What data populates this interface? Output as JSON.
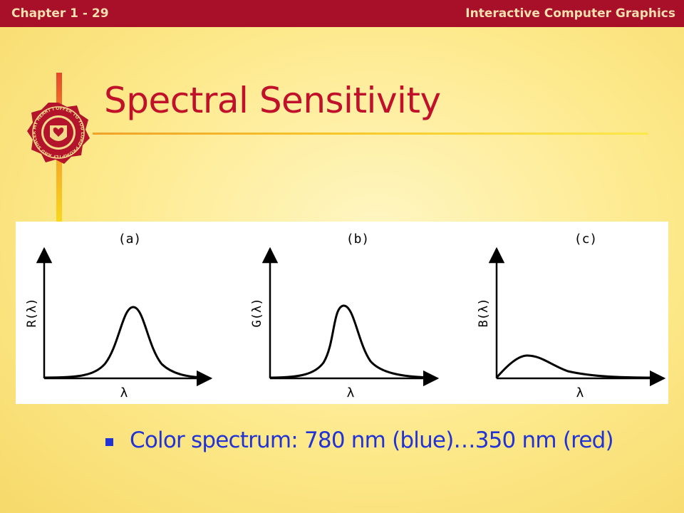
{
  "header": {
    "chapter": "Chapter 1 - 29",
    "course": "Interactive Computer Graphics"
  },
  "slide": {
    "title": "Spectral Sensitivity"
  },
  "seal": {
    "motto": "MY HEART I OFFER TO YOU LORD PROMPTLY AND SINCERELY"
  },
  "figure": {
    "panels": [
      {
        "label": "(a)",
        "ylabel": "R(λ)",
        "xlabel": "λ"
      },
      {
        "label": "(b)",
        "ylabel": "G(λ)",
        "xlabel": "λ"
      },
      {
        "label": "(c)",
        "ylabel": "B(λ)",
        "xlabel": "λ"
      }
    ]
  },
  "bullets": [
    "Color spectrum: 780 nm (blue)…350 nm (red)"
  ],
  "colors": {
    "header_bg": "#a8102a",
    "title": "#c0102a",
    "bullet": "#2233d6"
  }
}
